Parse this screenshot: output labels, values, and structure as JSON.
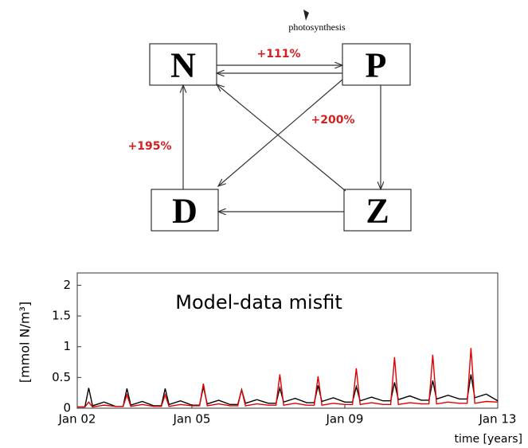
{
  "diagram": {
    "nodes": [
      "N",
      "P",
      "D",
      "Z"
    ],
    "photosynthesis": "photosynthesis",
    "changes": [
      "+111%",
      "+200%",
      "+195%"
    ]
  },
  "chart_data": {
    "type": "line",
    "annotation": "Model-data misfit",
    "ylabel": "[mmol N/m³]",
    "xlabel": "time [years]",
    "xlim": [
      2002,
      2013
    ],
    "ylim": [
      0,
      2.2
    ],
    "xticks": [
      {
        "value": 2002,
        "label": "Jan 02"
      },
      {
        "value": 2005,
        "label": "Jan 05"
      },
      {
        "value": 2009,
        "label": "Jan 09"
      },
      {
        "value": 2013,
        "label": "Jan 13"
      }
    ],
    "yticks": [
      0,
      0.5,
      1,
      1.5,
      2
    ],
    "x": [
      2002,
      2002.2,
      2002.3,
      2002.4,
      2002.7,
      2003,
      2003.2,
      2003.3,
      2003.4,
      2003.7,
      2004,
      2004.2,
      2004.3,
      2004.4,
      2004.7,
      2005,
      2005.2,
      2005.3,
      2005.4,
      2005.7,
      2006,
      2006.2,
      2006.3,
      2006.4,
      2006.7,
      2007,
      2007.2,
      2007.3,
      2007.4,
      2007.7,
      2008,
      2008.2,
      2008.3,
      2008.4,
      2008.7,
      2009,
      2009.2,
      2009.3,
      2009.4,
      2009.7,
      2010,
      2010.2,
      2010.3,
      2010.4,
      2010.7,
      2011,
      2011.2,
      2011.3,
      2011.4,
      2011.7,
      2012,
      2012.2,
      2012.3,
      2012.4,
      2012.7,
      2013
    ],
    "series": [
      {
        "color": "#000000",
        "values": [
          0.02,
          0.02,
          0.33,
          0.04,
          0.1,
          0.03,
          0.03,
          0.32,
          0.05,
          0.11,
          0.04,
          0.04,
          0.32,
          0.06,
          0.12,
          0.05,
          0.05,
          0.35,
          0.07,
          0.13,
          0.06,
          0.06,
          0.3,
          0.08,
          0.14,
          0.08,
          0.08,
          0.33,
          0.1,
          0.16,
          0.09,
          0.09,
          0.37,
          0.11,
          0.17,
          0.1,
          0.1,
          0.35,
          0.12,
          0.18,
          0.12,
          0.12,
          0.42,
          0.14,
          0.2,
          0.13,
          0.13,
          0.45,
          0.15,
          0.21,
          0.15,
          0.15,
          0.55,
          0.17,
          0.23,
          0.12
        ]
      },
      {
        "color": "#e00000",
        "values": [
          0.02,
          0.02,
          0.1,
          0.02,
          0.05,
          0.03,
          0.03,
          0.22,
          0.03,
          0.06,
          0.03,
          0.03,
          0.22,
          0.03,
          0.06,
          0.04,
          0.04,
          0.4,
          0.04,
          0.07,
          0.04,
          0.04,
          0.3,
          0.04,
          0.07,
          0.05,
          0.05,
          0.55,
          0.05,
          0.08,
          0.05,
          0.05,
          0.52,
          0.05,
          0.08,
          0.06,
          0.06,
          0.65,
          0.06,
          0.09,
          0.06,
          0.06,
          0.83,
          0.06,
          0.09,
          0.07,
          0.07,
          0.87,
          0.07,
          0.1,
          0.08,
          0.08,
          0.98,
          0.08,
          0.11,
          0.1
        ]
      }
    ]
  }
}
